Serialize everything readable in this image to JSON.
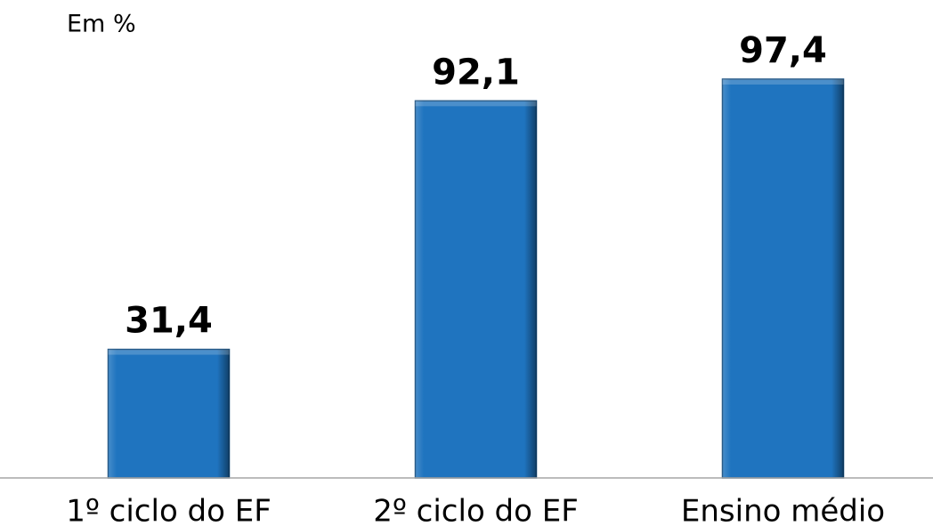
{
  "chart_data": {
    "type": "bar",
    "y_label": "Em %",
    "categories": [
      "1º ciclo do EF",
      "2º ciclo do EF",
      "Ensino médio"
    ],
    "values": [
      31.4,
      92.1,
      97.4
    ],
    "value_labels": [
      "31,4",
      "92,1",
      "97,4"
    ],
    "color": "#1f74bf",
    "ylim": [
      0,
      100
    ]
  }
}
